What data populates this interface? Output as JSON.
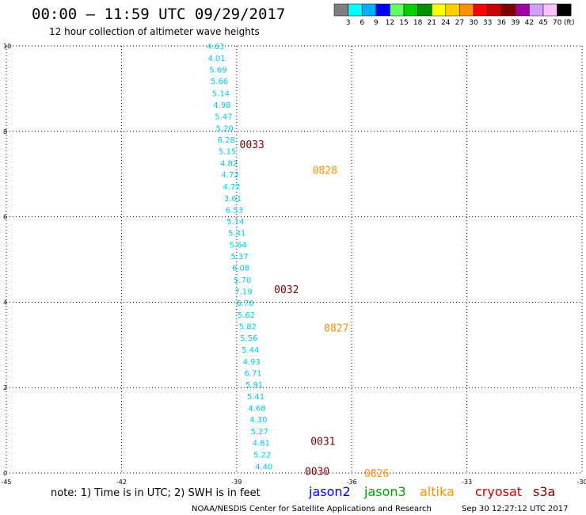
{
  "header": {
    "title": "00:00 – 11:59 UTC 09/29/2017",
    "subtitle": "12 hour collection of altimeter wave heights"
  },
  "colorbar": {
    "unit": "(ft)",
    "bins": [
      {
        "color": "#7f7f7f",
        "label": "3"
      },
      {
        "color": "#00ffff",
        "label": "6"
      },
      {
        "color": "#00b0ff",
        "label": "9"
      },
      {
        "color": "#0000ff",
        "label": "12"
      },
      {
        "color": "#60ff60",
        "label": "15"
      },
      {
        "color": "#00d000",
        "label": "18"
      },
      {
        "color": "#009000",
        "label": "21"
      },
      {
        "color": "#ffff00",
        "label": "24"
      },
      {
        "color": "#ffd000",
        "label": "27"
      },
      {
        "color": "#ff9000",
        "label": "30"
      },
      {
        "color": "#ff0000",
        "label": "33"
      },
      {
        "color": "#c80000",
        "label": "36"
      },
      {
        "color": "#800000",
        "label": "39"
      },
      {
        "color": "#a000a0",
        "label": "42"
      },
      {
        "color": "#d0a0ff",
        "label": "45"
      },
      {
        "color": "#ffc0ff",
        "label": "70"
      },
      {
        "color": "#000000",
        "label": ""
      }
    ]
  },
  "footer": {
    "note": "note:  1) Time is in UTC; 2) SWH is in feet",
    "credit": "NOAA/NESDIS Center for Satellite Applications and Research",
    "timestamp": "Sep 30 12:27:12 UTC 2017",
    "satellites": [
      {
        "name": "jason2",
        "color": "#0000ff"
      },
      {
        "name": "jason3",
        "color": "#00a000"
      },
      {
        "name": "altika",
        "color": "#ff9000"
      },
      {
        "name": "cryosat",
        "color": "#c80000"
      },
      {
        "name": "s3a",
        "color": "#800000"
      }
    ]
  },
  "chart_data": {
    "type": "scatter",
    "title": "00:00 – 11:59 UTC 09/29/2017",
    "subtitle": "12 hour collection of altimeter wave heights",
    "xlabel": "",
    "ylabel": "",
    "xlim": [
      -45,
      -30
    ],
    "ylim": [
      0,
      10
    ],
    "x_ticks": [
      -45,
      -42,
      -39,
      -36,
      -33,
      -30
    ],
    "y_ticks": [
      0,
      2,
      4,
      6,
      8,
      10
    ],
    "grid": true,
    "value_unit": "ft",
    "value_color": "#00c8e8",
    "tracks": [
      {
        "satellite": "s3a",
        "label_color": "#00c8e8",
        "points": [
          {
            "x": -39.55,
            "y": 10.0,
            "v": "4.63"
          },
          {
            "x": -39.52,
            "y": 9.72,
            "v": "4.01"
          },
          {
            "x": -39.48,
            "y": 9.45,
            "v": "5.69"
          },
          {
            "x": -39.45,
            "y": 9.18,
            "v": "5.66"
          },
          {
            "x": -39.41,
            "y": 8.9,
            "v": "5.14"
          },
          {
            "x": -39.38,
            "y": 8.63,
            "v": "4.98"
          },
          {
            "x": -39.34,
            "y": 8.36,
            "v": "5.47"
          },
          {
            "x": -39.31,
            "y": 8.08,
            "v": "5.20"
          },
          {
            "x": -39.27,
            "y": 7.81,
            "v": "6.28"
          },
          {
            "x": -39.24,
            "y": 7.54,
            "v": "5.15"
          },
          {
            "x": -39.2,
            "y": 7.26,
            "v": "4.82"
          },
          {
            "x": -39.17,
            "y": 6.99,
            "v": "4.72"
          },
          {
            "x": -39.13,
            "y": 6.72,
            "v": "4.72"
          },
          {
            "x": -39.1,
            "y": 6.44,
            "v": "3.61"
          },
          {
            "x": -39.06,
            "y": 6.17,
            "v": "6.53"
          },
          {
            "x": -39.03,
            "y": 5.9,
            "v": "5.14"
          },
          {
            "x": -38.99,
            "y": 5.63,
            "v": "5.41"
          },
          {
            "x": -38.96,
            "y": 5.35,
            "v": "5.64"
          },
          {
            "x": -38.92,
            "y": 5.08,
            "v": "5.37"
          },
          {
            "x": -38.89,
            "y": 4.81,
            "v": "6.08"
          },
          {
            "x": -38.85,
            "y": 4.53,
            "v": "5.70"
          },
          {
            "x": -38.82,
            "y": 4.26,
            "v": "7.19"
          },
          {
            "x": -38.78,
            "y": 3.99,
            "v": "6.70"
          },
          {
            "x": -38.75,
            "y": 3.71,
            "v": "5.62"
          },
          {
            "x": -38.71,
            "y": 3.44,
            "v": "5.82"
          },
          {
            "x": -38.68,
            "y": 3.17,
            "v": "5.56"
          },
          {
            "x": -38.64,
            "y": 2.89,
            "v": "5.44"
          },
          {
            "x": -38.61,
            "y": 2.62,
            "v": "4.93"
          },
          {
            "x": -38.57,
            "y": 2.35,
            "v": "6.71"
          },
          {
            "x": -38.54,
            "y": 2.08,
            "v": "5.91"
          },
          {
            "x": -38.5,
            "y": 1.8,
            "v": "5.41"
          },
          {
            "x": -38.47,
            "y": 1.53,
            "v": "4.68"
          },
          {
            "x": -38.43,
            "y": 1.26,
            "v": "4.30"
          },
          {
            "x": -38.4,
            "y": 0.98,
            "v": "5.27"
          },
          {
            "x": -38.36,
            "y": 0.71,
            "v": "4.81"
          },
          {
            "x": -38.33,
            "y": 0.44,
            "v": "5.22"
          },
          {
            "x": -38.29,
            "y": 0.16,
            "v": "4.40"
          }
        ]
      }
    ],
    "time_labels": [
      {
        "x": -38.6,
        "y": 7.7,
        "text": "0033",
        "satellite": "s3a"
      },
      {
        "x": -36.7,
        "y": 7.1,
        "text": "0828",
        "satellite": "altika"
      },
      {
        "x": -37.7,
        "y": 4.3,
        "text": "0032",
        "satellite": "s3a"
      },
      {
        "x": -36.4,
        "y": 3.4,
        "text": "0827",
        "satellite": "altika"
      },
      {
        "x": -36.75,
        "y": 0.75,
        "text": "0031",
        "satellite": "s3a"
      },
      {
        "x": -36.9,
        "y": 0.05,
        "text": "0030",
        "satellite": "s3a"
      },
      {
        "x": -35.35,
        "y": 0.0,
        "text": "0826",
        "satellite": "altika"
      }
    ]
  }
}
